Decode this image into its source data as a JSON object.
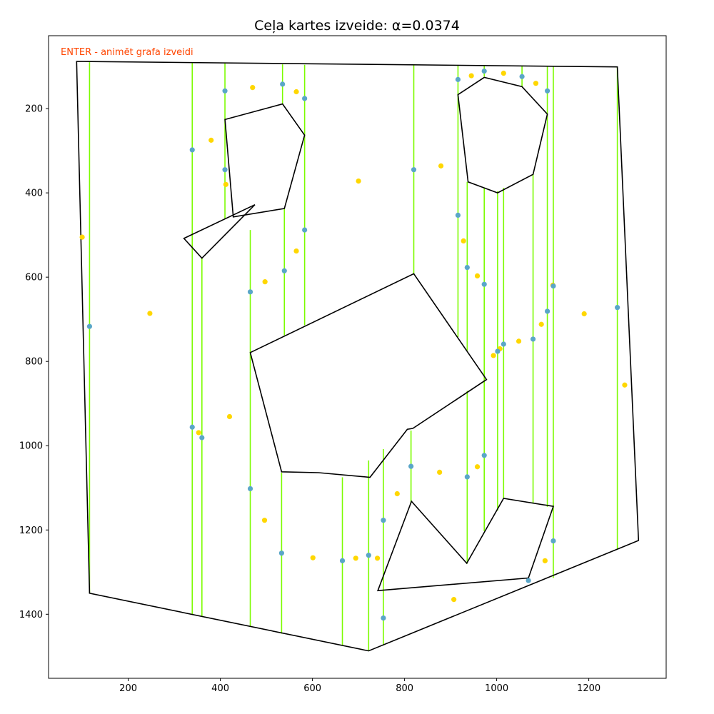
{
  "chart_data": {
    "type": "scatter",
    "title": "Ceļa kartes izveide: α=0.0374",
    "annotation": "ENTER - animēt grafa izveidi",
    "xlabel": "",
    "ylabel": "",
    "xlim": [
      27,
      1368
    ],
    "ylim": [
      1552,
      27
    ],
    "y_inverted": true,
    "grid": false,
    "x_ticks": [
      200,
      400,
      600,
      800,
      1000,
      1200
    ],
    "y_ticks": [
      200,
      400,
      600,
      800,
      1000,
      1200,
      1400
    ],
    "colors": {
      "boundary": "#000000",
      "decomposition_lines": "#7cfc00",
      "cell_nodes": "#5aa6c8",
      "sample_points": "#ffd700",
      "annotation": "#ff4500"
    },
    "outer_boundary": [
      [
        88,
        88
      ],
      [
        1262,
        101
      ],
      [
        1308,
        1225
      ],
      [
        722,
        1487
      ],
      [
        116,
        1350
      ]
    ],
    "obstacles": [
      [
        [
          410,
          226
        ],
        [
          535,
          189
        ],
        [
          583,
          263
        ],
        [
          539,
          437
        ],
        [
          428,
          457
        ]
      ],
      [
        [
          321,
          508
        ],
        [
          475,
          428
        ],
        [
          360,
          555
        ]
      ],
      [
        [
          916,
          167
        ],
        [
          973,
          126
        ],
        [
          1055,
          148
        ],
        [
          1110,
          213
        ],
        [
          1079,
          356
        ],
        [
          1002,
          400
        ],
        [
          938,
          374
        ]
      ],
      [
        [
          465,
          779
        ],
        [
          820,
          592
        ],
        [
          978,
          843
        ],
        [
          818,
          959
        ],
        [
          806,
          961
        ],
        [
          725,
          1075
        ],
        [
          613,
          1064
        ],
        [
          533,
          1062
        ]
      ],
      [
        [
          742,
          1344
        ],
        [
          815,
          1132
        ],
        [
          935,
          1279
        ],
        [
          1015,
          1125
        ],
        [
          1123,
          1144
        ],
        [
          1069,
          1314
        ]
      ]
    ],
    "decomposition_lines": [
      [
        116,
        90,
        116,
        1350
      ],
      [
        339,
        92,
        339,
        1400
      ],
      [
        360,
        555,
        360,
        1405
      ],
      [
        410,
        93,
        410,
        462
      ],
      [
        465,
        488,
        465,
        1428
      ],
      [
        535,
        95,
        535,
        188
      ],
      [
        539,
        438,
        539,
        738
      ],
      [
        583,
        96,
        583,
        714
      ],
      [
        533,
        1064,
        533,
        1446
      ],
      [
        820,
        97,
        820,
        592
      ],
      [
        665,
        1075,
        665,
        1474
      ],
      [
        722,
        1035,
        722,
        1487
      ],
      [
        754,
        1008,
        754,
        1474
      ],
      [
        814,
        964,
        814,
        1136
      ],
      [
        916,
        97,
        916,
        742
      ],
      [
        936,
        374,
        936,
        774
      ],
      [
        936,
        870,
        936,
        1280
      ],
      [
        973,
        99,
        973,
        124
      ],
      [
        973,
        388,
        973,
        1203
      ],
      [
        1002,
        396,
        1002,
        1154
      ],
      [
        1015,
        388,
        1015,
        1125
      ],
      [
        1055,
        99,
        1055,
        148
      ],
      [
        1079,
        356,
        1079,
        1137
      ],
      [
        1110,
        99,
        1110,
        1145
      ],
      [
        1123,
        99,
        1123,
        1314
      ],
      [
        1262,
        101,
        1262,
        1246
      ]
    ],
    "cell_nodes": [
      [
        116,
        717
      ],
      [
        339,
        298
      ],
      [
        410,
        158
      ],
      [
        535,
        142
      ],
      [
        583,
        176
      ],
      [
        410,
        345
      ],
      [
        583,
        488
      ],
      [
        539,
        585
      ],
      [
        465,
        635
      ],
      [
        820,
        345
      ],
      [
        916,
        131
      ],
      [
        973,
        111
      ],
      [
        1055,
        124
      ],
      [
        1110,
        158
      ],
      [
        916,
        453
      ],
      [
        936,
        577
      ],
      [
        973,
        617
      ],
      [
        1002,
        776
      ],
      [
        1015,
        759
      ],
      [
        1079,
        747
      ],
      [
        1110,
        681
      ],
      [
        1123,
        621
      ],
      [
        1262,
        672
      ],
      [
        339,
        956
      ],
      [
        360,
        981
      ],
      [
        465,
        1102
      ],
      [
        533,
        1255
      ],
      [
        665,
        1273
      ],
      [
        722,
        1260
      ],
      [
        754,
        1177
      ],
      [
        754,
        1409
      ],
      [
        814,
        1049
      ],
      [
        936,
        1074
      ],
      [
        973,
        1023
      ],
      [
        1123,
        1226
      ],
      [
        1069,
        1320
      ]
    ],
    "sample_points": [
      [
        470,
        150
      ],
      [
        565,
        160
      ],
      [
        380,
        275
      ],
      [
        412,
        380
      ],
      [
        100,
        505
      ],
      [
        565,
        538
      ],
      [
        497,
        611
      ],
      [
        700,
        372
      ],
      [
        879,
        336
      ],
      [
        945,
        122
      ],
      [
        1015,
        116
      ],
      [
        1085,
        140
      ],
      [
        928,
        514
      ],
      [
        958,
        597
      ],
      [
        1122,
        619
      ],
      [
        1097,
        712
      ],
      [
        1190,
        687
      ],
      [
        1048,
        752
      ],
      [
        1007,
        770
      ],
      [
        993,
        786
      ],
      [
        1278,
        856
      ],
      [
        247,
        686
      ],
      [
        420,
        931
      ],
      [
        353,
        969
      ],
      [
        496,
        1177
      ],
      [
        601,
        1266
      ],
      [
        694,
        1267
      ],
      [
        741,
        1267
      ],
      [
        784,
        1114
      ],
      [
        876,
        1063
      ],
      [
        958,
        1050
      ],
      [
        1105,
        1273
      ],
      [
        907,
        1365
      ]
    ]
  }
}
